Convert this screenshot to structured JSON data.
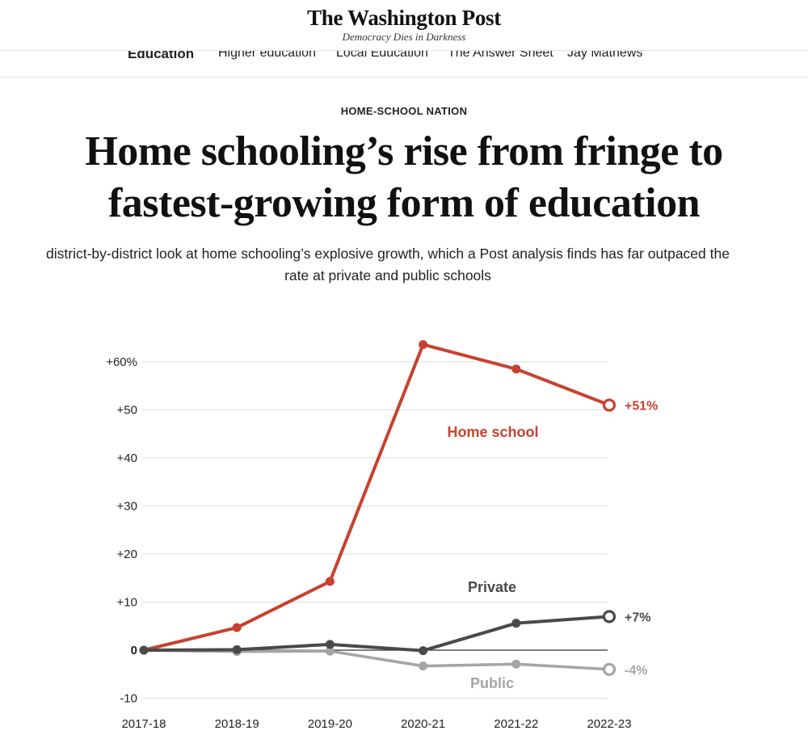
{
  "masthead": {
    "logo": "The Washington Post",
    "tagline": "Democracy Dies in Darkness"
  },
  "nav": {
    "items": [
      {
        "label": "Education",
        "active": true
      },
      {
        "label": "Higher education",
        "active": false
      },
      {
        "label": "Local Education",
        "active": false
      },
      {
        "label": "The Answer Sheet",
        "active": false
      },
      {
        "label": "Jay Mathews",
        "active": false
      }
    ]
  },
  "article": {
    "kicker": "HOME-SCHOOL NATION",
    "headline_line1": "Home schooling’s rise from fringe to",
    "headline_line2": "fastest-growing form of education",
    "dek_line1": "district-by-district look at home schooling’s explosive growth, which a Post analysis finds has far outpaced the",
    "dek_line2": "rate at private and public schools"
  },
  "chart_data": {
    "type": "line",
    "x": [
      "2017-18",
      "2018-19",
      "2019-20",
      "2020-21",
      "2021-22",
      "2022-23"
    ],
    "ylim": [
      -10,
      65
    ],
    "yticks": [
      -10,
      0,
      10,
      20,
      30,
      40,
      50,
      60
    ],
    "ytick_labels": [
      "-10",
      "0",
      "+10",
      "+20",
      "+30",
      "+40",
      "+50",
      "+60%"
    ],
    "grid": true,
    "series": [
      {
        "name": "Home school",
        "color": "#c8412f",
        "values": [
          0,
          4.7,
          14.3,
          63.6,
          58.5,
          51
        ],
        "end_label": "+51%",
        "width": 4
      },
      {
        "name": "Public",
        "color": "#a5a5a5",
        "values": [
          0,
          -0.3,
          -0.2,
          -3.3,
          -2.9,
          -4
        ],
        "end_label": "-4%",
        "width": 3.5
      },
      {
        "name": "Private",
        "color": "#4a4a4a",
        "values": [
          0,
          0.1,
          1.2,
          -0.1,
          5.6,
          7
        ],
        "end_label": "+7%",
        "width": 4
      }
    ]
  }
}
